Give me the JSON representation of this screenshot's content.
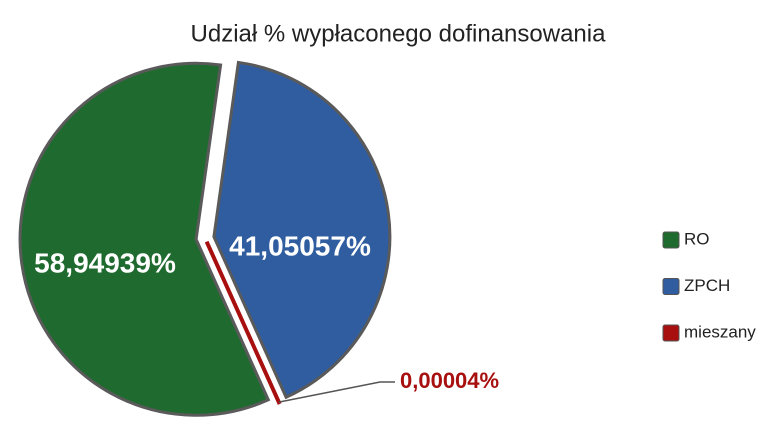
{
  "chart_data": {
    "type": "pie",
    "title": "Udział % wypłaconego dofinansowania",
    "categories": [
      "RO",
      "ZPCH",
      "mieszany"
    ],
    "values": [
      58.94939,
      41.05057,
      4e-05
    ],
    "value_labels": [
      "58,94939%",
      "41,05057%",
      "0,00004%"
    ],
    "colors": [
      "#1f6a2f",
      "#2f5d9f",
      "#a80f0f"
    ],
    "legend": "right"
  }
}
